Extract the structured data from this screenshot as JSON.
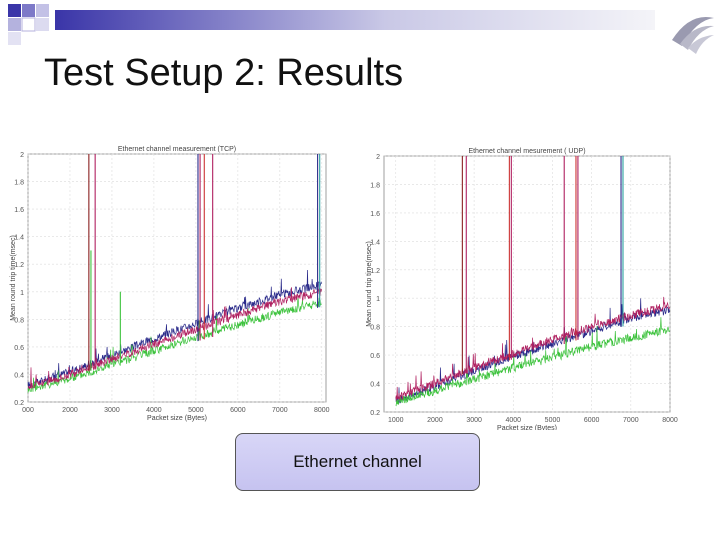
{
  "slide": {
    "title": "Test Setup 2: Results",
    "caption": "Ethernet channel"
  },
  "colors": {
    "top_bar_dark": "#3a35a8",
    "top_bar_light": "#e9e9f3",
    "caption_fill": "#cfccf4",
    "series": [
      "#2a2a8a",
      "#3cc23c",
      "#b02060",
      "#cc3333",
      "#2aa0a0",
      "#8a2020"
    ]
  },
  "icons": {
    "logo": "wing-swoosh-icon"
  },
  "chart_data": [
    {
      "type": "line",
      "title": "Ethernet channel measurement (TCP)",
      "xlabel": "Packet size (Bytes)",
      "ylabel": "Mean round trip time(msec)",
      "xlim": [
        1000,
        8100
      ],
      "ylim": [
        0.2,
        2
      ],
      "xticks": [
        "000",
        "2000",
        "3000",
        "4000",
        "5000",
        "6000",
        "7000",
        "8000"
      ],
      "yticks": [
        "0.2",
        "0.4",
        "0.6",
        "0.8",
        "1",
        "1.2",
        "1.4",
        "1.6",
        "1.8",
        "2"
      ],
      "grid": true,
      "x": [
        1000,
        2000,
        3000,
        4000,
        5000,
        6000,
        7000,
        8000
      ],
      "series": [
        {
          "values": [
            0.32,
            0.42,
            0.54,
            0.66,
            0.77,
            0.88,
            0.98,
            1.05
          ]
        },
        {
          "values": [
            0.29,
            0.37,
            0.47,
            0.57,
            0.67,
            0.76,
            0.85,
            0.92
          ]
        },
        {
          "values": [
            0.31,
            0.4,
            0.51,
            0.62,
            0.73,
            0.83,
            0.93,
            1.0
          ]
        }
      ],
      "spikes": [
        {
          "x": 2450,
          "top": 2.0,
          "color": "#8a2020"
        },
        {
          "x": 2600,
          "top": 2.0,
          "color": "#b02060"
        },
        {
          "x": 2500,
          "top": 1.3,
          "color": "#3cc23c"
        },
        {
          "x": 3200,
          "top": 1.0,
          "color": "#3cc23c"
        },
        {
          "x": 5050,
          "top": 2.0,
          "color": "#2a2a8a"
        },
        {
          "x": 5100,
          "top": 2.0,
          "color": "#b02060"
        },
        {
          "x": 5200,
          "top": 2.0,
          "color": "#cc3333"
        },
        {
          "x": 5400,
          "top": 2.0,
          "color": "#b02060"
        },
        {
          "x": 7900,
          "top": 2.0,
          "color": "#2a2a8a"
        },
        {
          "x": 7950,
          "top": 2.0,
          "color": "#2aa0a0"
        }
      ]
    },
    {
      "type": "line",
      "title": "Ethernet channel mesurement ( UDP)",
      "xlabel": "Packet size (Bytes)",
      "ylabel": "Mean round trip time(msec)",
      "xlim": [
        700,
        8000
      ],
      "ylim": [
        0.2,
        2
      ],
      "xticks": [
        "1000",
        "2000",
        "3000",
        "4000",
        "5000",
        "6000",
        "7000",
        "8000"
      ],
      "yticks": [
        "0.2",
        "0.4",
        "0.6",
        "0.8",
        "1",
        "1.2",
        "1.4",
        "1.6",
        "1.8",
        "2"
      ],
      "grid": true,
      "x": [
        1000,
        2000,
        3000,
        4000,
        5000,
        6000,
        7000,
        8000
      ],
      "series": [
        {
          "values": [
            0.28,
            0.38,
            0.49,
            0.59,
            0.68,
            0.77,
            0.86,
            0.92
          ]
        },
        {
          "values": [
            0.27,
            0.35,
            0.43,
            0.51,
            0.58,
            0.66,
            0.72,
            0.78
          ]
        },
        {
          "values": [
            0.3,
            0.4,
            0.51,
            0.61,
            0.71,
            0.8,
            0.88,
            0.95
          ]
        }
      ],
      "spikes": [
        {
          "x": 2700,
          "top": 2.0,
          "color": "#8a2020"
        },
        {
          "x": 2800,
          "top": 2.0,
          "color": "#b02060"
        },
        {
          "x": 3900,
          "top": 2.0,
          "color": "#cc3333"
        },
        {
          "x": 3950,
          "top": 2.0,
          "color": "#b02060"
        },
        {
          "x": 5300,
          "top": 2.0,
          "color": "#b02060"
        },
        {
          "x": 5600,
          "top": 2.0,
          "color": "#cc3333"
        },
        {
          "x": 5650,
          "top": 2.0,
          "color": "#b02060"
        },
        {
          "x": 6750,
          "top": 2.0,
          "color": "#2a2a8a"
        },
        {
          "x": 6800,
          "top": 2.0,
          "color": "#2aa0a0"
        }
      ]
    }
  ]
}
